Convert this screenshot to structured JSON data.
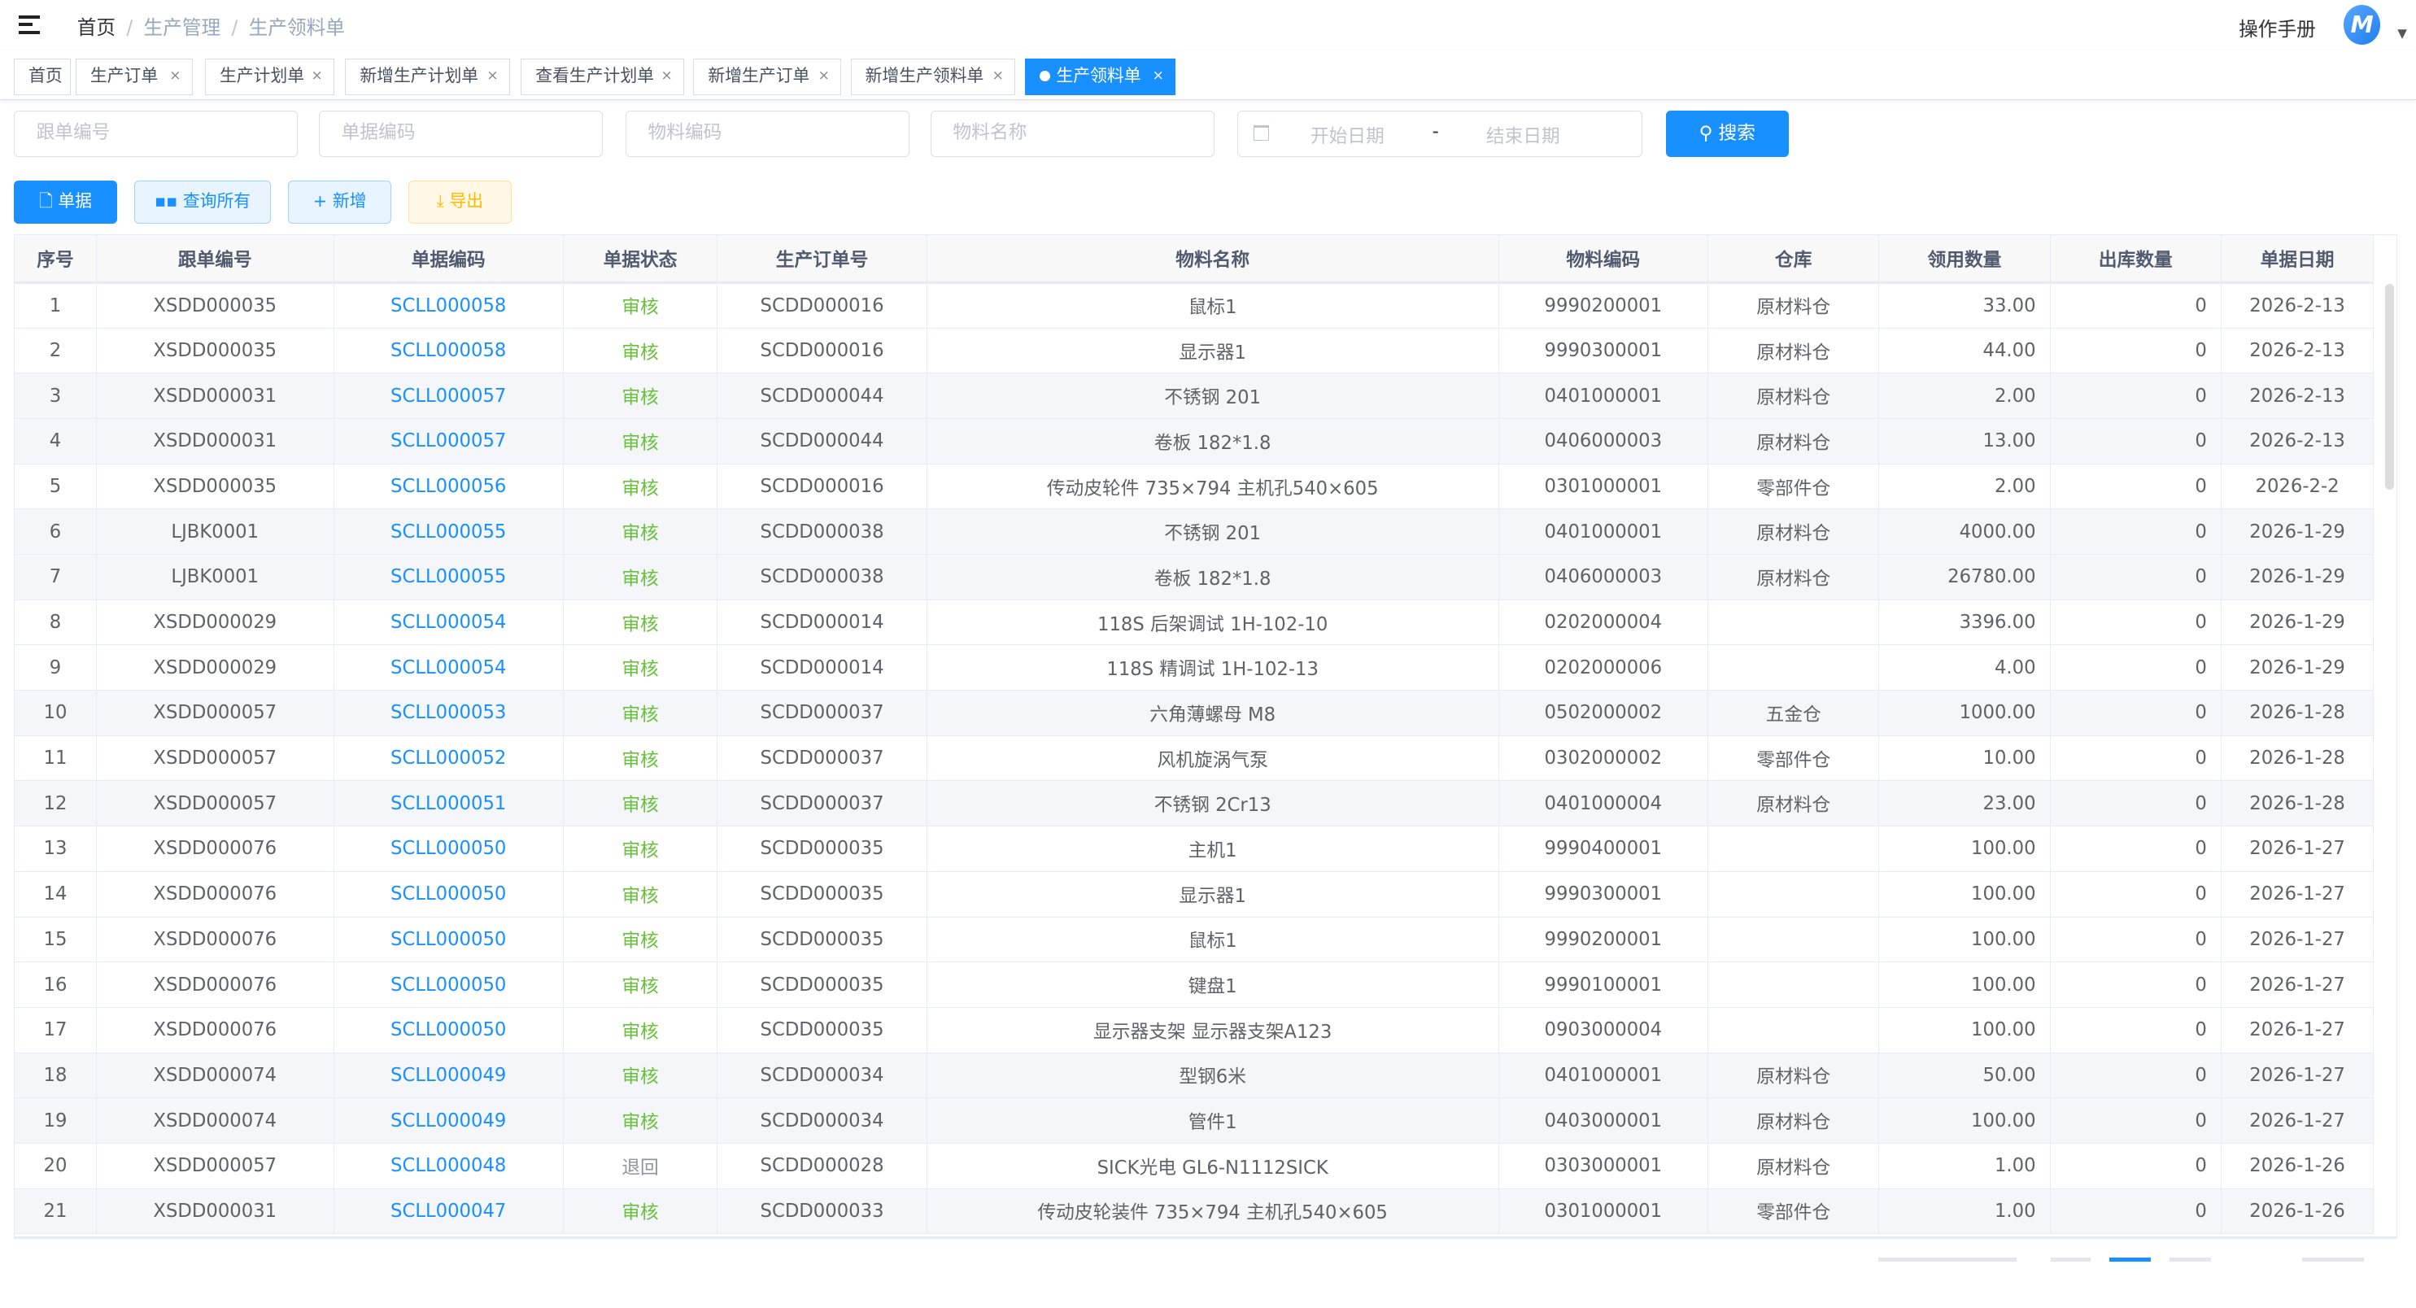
{
  "header": {
    "breadcrumb": [
      "首页",
      "生产管理",
      "生产领料单"
    ],
    "manual": "操作手册",
    "avatar_letter": "M"
  },
  "tabs": [
    {
      "label": "首页",
      "closable": false
    },
    {
      "label": "生产订单",
      "closable": true
    },
    {
      "label": "生产计划单",
      "closable": true
    },
    {
      "label": "新增生产计划单",
      "closable": true
    },
    {
      "label": "查看生产计划单",
      "closable": true
    },
    {
      "label": "新增生产订单",
      "closable": true
    },
    {
      "label": "新增生产领料单",
      "closable": true
    },
    {
      "label": "生产领料单",
      "closable": true,
      "active": true
    }
  ],
  "filters": {
    "follow_no": "跟单编号",
    "doc_code": "单据编码",
    "material_code": "物料编码",
    "material_name": "物料名称",
    "start_date": "开始日期",
    "date_sep": "-",
    "end_date": "结束日期",
    "search": "搜索"
  },
  "toolbar": {
    "doc": "单据",
    "query_all": "查询所有",
    "add": "新增",
    "export": "导出"
  },
  "colors": {
    "primary": "#1890ff",
    "approved": "#67c23a",
    "returned": "#909399"
  },
  "table": {
    "columns": [
      "序号",
      "跟单编号",
      "单据编码",
      "单据状态",
      "生产订单号",
      "物料名称",
      "物料编码",
      "仓库",
      "领用数量",
      "出库数量",
      "单据日期"
    ],
    "rows": [
      [
        "1",
        "XSDD000035",
        "SCLL000058",
        "审核",
        "SCDD000016",
        "鼠标1",
        "9990200001",
        "原材料仓",
        "33.00",
        "0",
        "2026-2-13"
      ],
      [
        "2",
        "XSDD000035",
        "SCLL000058",
        "审核",
        "SCDD000016",
        "显示器1",
        "9990300001",
        "原材料仓",
        "44.00",
        "0",
        "2026-2-13"
      ],
      [
        "3",
        "XSDD000031",
        "SCLL000057",
        "审核",
        "SCDD000044",
        "不锈钢 201",
        "0401000001",
        "原材料仓",
        "2.00",
        "0",
        "2026-2-13"
      ],
      [
        "4",
        "XSDD000031",
        "SCLL000057",
        "审核",
        "SCDD000044",
        "卷板 182*1.8",
        "0406000003",
        "原材料仓",
        "13.00",
        "0",
        "2026-2-13"
      ],
      [
        "5",
        "XSDD000035",
        "SCLL000056",
        "审核",
        "SCDD000016",
        "传动皮轮件 735×794 主机孔540×605",
        "0301000001",
        "零部件仓",
        "2.00",
        "0",
        "2026-2-2"
      ],
      [
        "6",
        "LJBK0001",
        "SCLL000055",
        "审核",
        "SCDD000038",
        "不锈钢 201",
        "0401000001",
        "原材料仓",
        "4000.00",
        "0",
        "2026-1-29"
      ],
      [
        "7",
        "LJBK0001",
        "SCLL000055",
        "审核",
        "SCDD000038",
        "卷板 182*1.8",
        "0406000003",
        "原材料仓",
        "26780.00",
        "0",
        "2026-1-29"
      ],
      [
        "8",
        "XSDD000029",
        "SCLL000054",
        "审核",
        "SCDD000014",
        "118S 后架调试 1H-102-10",
        "0202000004",
        "",
        "3396.00",
        "0",
        "2026-1-29"
      ],
      [
        "9",
        "XSDD000029",
        "SCLL000054",
        "审核",
        "SCDD000014",
        "118S 精调试 1H-102-13",
        "0202000006",
        "",
        "4.00",
        "0",
        "2026-1-29"
      ],
      [
        "10",
        "XSDD000057",
        "SCLL000053",
        "审核",
        "SCDD000037",
        "六角薄螺母 M8",
        "0502000002",
        "五金仓",
        "1000.00",
        "0",
        "2026-1-28"
      ],
      [
        "11",
        "XSDD000057",
        "SCLL000052",
        "审核",
        "SCDD000037",
        "风机旋涡气泵",
        "0302000002",
        "零部件仓",
        "10.00",
        "0",
        "2026-1-28"
      ],
      [
        "12",
        "XSDD000057",
        "SCLL000051",
        "审核",
        "SCDD000037",
        "不锈钢 2Cr13",
        "0401000004",
        "原材料仓",
        "23.00",
        "0",
        "2026-1-28"
      ],
      [
        "13",
        "XSDD000076",
        "SCLL000050",
        "审核",
        "SCDD000035",
        "主机1",
        "9990400001",
        "",
        "100.00",
        "0",
        "2026-1-27"
      ],
      [
        "14",
        "XSDD000076",
        "SCLL000050",
        "审核",
        "SCDD000035",
        "显示器1",
        "9990300001",
        "",
        "100.00",
        "0",
        "2026-1-27"
      ],
      [
        "15",
        "XSDD000076",
        "SCLL000050",
        "审核",
        "SCDD000035",
        "鼠标1",
        "9990200001",
        "",
        "100.00",
        "0",
        "2026-1-27"
      ],
      [
        "16",
        "XSDD000076",
        "SCLL000050",
        "审核",
        "SCDD000035",
        "键盘1",
        "9990100001",
        "",
        "100.00",
        "0",
        "2026-1-27"
      ],
      [
        "17",
        "XSDD000076",
        "SCLL000050",
        "审核",
        "SCDD000035",
        "显示器支架 显示器支架A123",
        "0903000004",
        "",
        "100.00",
        "0",
        "2026-1-27"
      ],
      [
        "18",
        "XSDD000074",
        "SCLL000049",
        "审核",
        "SCDD000034",
        "型钢6米",
        "0401000001",
        "原材料仓",
        "50.00",
        "0",
        "2026-1-27"
      ],
      [
        "19",
        "XSDD000074",
        "SCLL000049",
        "审核",
        "SCDD000034",
        "管件1",
        "0403000001",
        "原材料仓",
        "100.00",
        "0",
        "2026-1-27"
      ],
      [
        "20",
        "XSDD000057",
        "SCLL000048",
        "退回",
        "SCDD000028",
        "SICK光电 GL6-N1112SICK",
        "0303000001",
        "原材料仓",
        "1.00",
        "0",
        "2026-1-26"
      ],
      [
        "21",
        "XSDD000031",
        "SCLL000047",
        "审核",
        "SCDD000033",
        "传动皮轮装件 735×794 主机孔540×605",
        "0301000001",
        "零部件仓",
        "1.00",
        "0",
        "2026-1-26"
      ]
    ],
    "shaded_rows": [
      3,
      4,
      6,
      7,
      10,
      12,
      18,
      19,
      21
    ]
  }
}
